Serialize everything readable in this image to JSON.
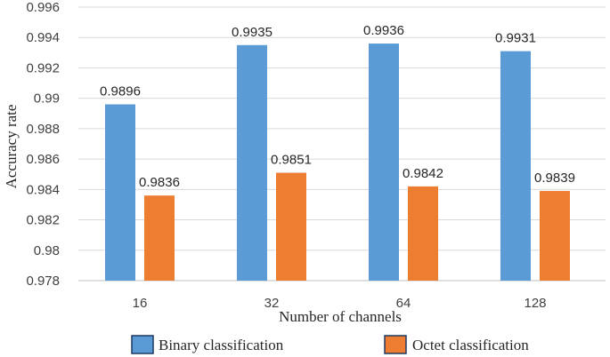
{
  "chart_data": {
    "type": "bar",
    "title": "",
    "xlabel": "Number of channels",
    "ylabel": "Accuracy rate",
    "categories": [
      "16",
      "32",
      "64",
      "128"
    ],
    "series": [
      {
        "name": "Binary classification",
        "color": "#5b9bd5",
        "values": [
          0.9896,
          0.9935,
          0.9936,
          0.9931
        ]
      },
      {
        "name": "Octet classification",
        "color": "#ed7d31",
        "values": [
          0.9836,
          0.9851,
          0.9842,
          0.9839
        ]
      }
    ],
    "ylim": [
      0.978,
      0.996
    ],
    "yticks": [
      "0.978",
      "0.98",
      "0.982",
      "0.984",
      "0.986",
      "0.988",
      "0.99",
      "0.992",
      "0.994",
      "0.996"
    ],
    "grid": true,
    "legend_position": "bottom"
  }
}
